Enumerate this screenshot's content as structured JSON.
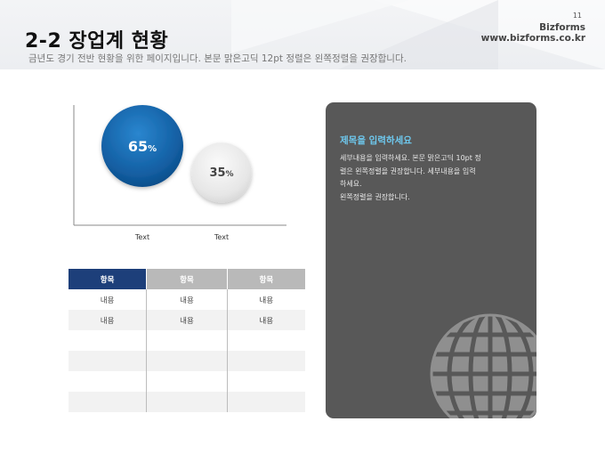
{
  "header": {
    "title": "2-2 장업계 현황",
    "subtitle": "금년도 경기 전반 현황을 위한 페이지입니다. 본문 맑은고딕 12pt 정렬은 왼쪽정렬을 권장합니다.",
    "page_number": "11",
    "brand_line1": "Bizforms",
    "brand_line2": "www.bizforms.co.kr"
  },
  "chart_data": {
    "type": "bubble",
    "categories": [
      "Text",
      "Text"
    ],
    "values": [
      65,
      35
    ],
    "value_labels": [
      "65%",
      "35%"
    ],
    "colors": [
      "#1565a8",
      "#e6e6e6"
    ]
  },
  "table": {
    "headers": [
      "항목",
      "항목",
      "항목"
    ],
    "rows": [
      [
        "내용",
        "내용",
        "내용"
      ],
      [
        "내용",
        "내용",
        "내용"
      ],
      [
        "",
        "",
        ""
      ],
      [
        "",
        "",
        ""
      ],
      [
        "",
        "",
        ""
      ],
      [
        "",
        "",
        ""
      ]
    ]
  },
  "panel": {
    "title": "제목을 입력하세요",
    "body_lines": [
      "세부내용을 입력하세요. 본문 맑은고딕 10pt 정",
      "렬은 왼쪽정렬을 권장합니다. 세부내용을 입력",
      "하세요.",
      "왼쪽정렬을 권장합니다."
    ],
    "icon": "globe-icon"
  }
}
